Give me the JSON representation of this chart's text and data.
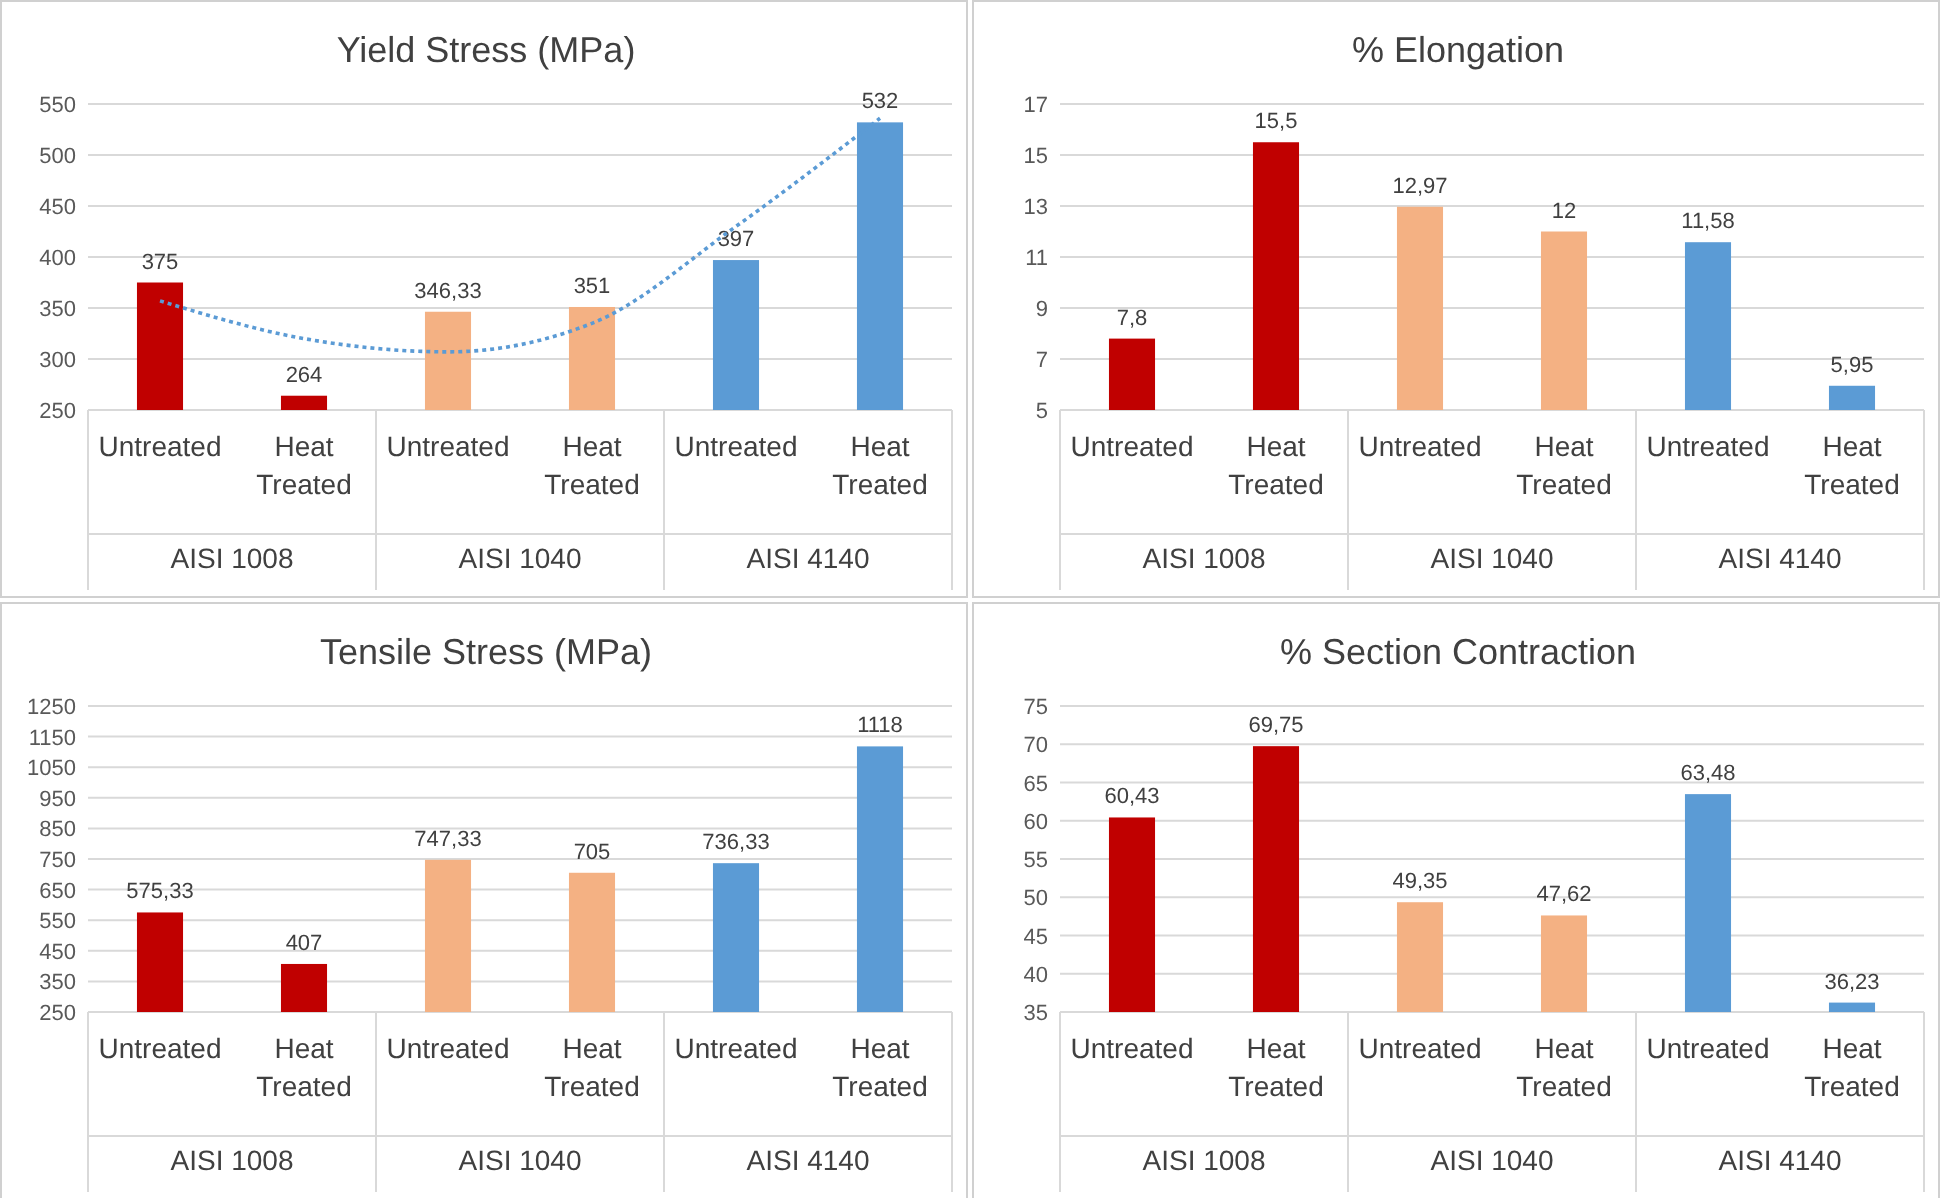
{
  "chart_data": [
    {
      "type": "bar",
      "title": "Yield Stress (MPa)",
      "categories": [
        "Untreated",
        "Heat Treated",
        "Untreated",
        "Heat Treated",
        "Untreated",
        "Heat Treated"
      ],
      "annotations": [
        "AISI 1008",
        "AISI 1040",
        "AISI 4140"
      ],
      "series": [
        {
          "type": "bar",
          "values": [
            375,
            264,
            346.33,
            351,
            397,
            532
          ],
          "value_labels": [
            "375",
            "264",
            "346,33",
            "351",
            "397",
            "532"
          ],
          "colors": [
            "#c00000",
            "#c00000",
            "#f4b183",
            "#f4b183",
            "#5b9bd5",
            "#5b9bd5"
          ]
        },
        {
          "type": "line",
          "values": [
            357,
            320,
            307,
            335,
            430,
            536
          ],
          "color": "#5b9bd5",
          "line_style": "dotted",
          "marker": "none"
        }
      ],
      "ylim": [
        250,
        550
      ],
      "yticks": [
        250,
        300,
        350,
        400,
        450,
        500,
        550
      ],
      "grid": "y"
    },
    {
      "type": "bar",
      "title": "% Elongation",
      "categories": [
        "Untreated",
        "Heat Treated",
        "Untreated",
        "Heat Treated",
        "Untreated",
        "Heat Treated"
      ],
      "annotations": [
        "AISI 1008",
        "AISI 1040",
        "AISI 4140"
      ],
      "series": [
        {
          "type": "bar",
          "values": [
            7.8,
            15.5,
            12.97,
            12,
            11.58,
            5.95
          ],
          "value_labels": [
            "7,8",
            "15,5",
            "12,97",
            "12",
            "11,58",
            "5,95"
          ],
          "colors": [
            "#c00000",
            "#c00000",
            "#f4b183",
            "#f4b183",
            "#5b9bd5",
            "#5b9bd5"
          ]
        }
      ],
      "ylim": [
        5,
        17
      ],
      "yticks": [
        5,
        7,
        9,
        11,
        13,
        15,
        17
      ],
      "grid": "y"
    },
    {
      "type": "bar",
      "title": "Tensile Stress (MPa)",
      "categories": [
        "Untreated",
        "Heat Treated",
        "Untreated",
        "Heat Treated",
        "Untreated",
        "Heat Treated"
      ],
      "annotations": [
        "AISI 1008",
        "AISI 1040",
        "AISI 4140"
      ],
      "series": [
        {
          "type": "bar",
          "values": [
            575.33,
            407,
            747.33,
            705,
            736.33,
            1118
          ],
          "value_labels": [
            "575,33",
            "407",
            "747,33",
            "705",
            "736,33",
            "1118"
          ],
          "colors": [
            "#c00000",
            "#c00000",
            "#f4b183",
            "#f4b183",
            "#5b9bd5",
            "#5b9bd5"
          ]
        }
      ],
      "ylim": [
        250,
        1250
      ],
      "yticks": [
        250,
        350,
        450,
        550,
        650,
        750,
        850,
        950,
        1050,
        1150,
        1250
      ],
      "grid": "y"
    },
    {
      "type": "bar",
      "title": "% Section Contraction",
      "categories": [
        "Untreated",
        "Heat Treated",
        "Untreated",
        "Heat Treated",
        "Untreated",
        "Heat Treated"
      ],
      "annotations": [
        "AISI 1008",
        "AISI 1040",
        "AISI 4140"
      ],
      "series": [
        {
          "type": "bar",
          "values": [
            60.43,
            69.75,
            49.35,
            47.62,
            63.48,
            36.23
          ],
          "value_labels": [
            "60,43",
            "69,75",
            "49,35",
            "47,62",
            "63,48",
            "36,23"
          ],
          "colors": [
            "#c00000",
            "#c00000",
            "#f4b183",
            "#f4b183",
            "#5b9bd5",
            "#5b9bd5"
          ]
        }
      ],
      "ylim": [
        35,
        75
      ],
      "yticks": [
        35,
        40,
        45,
        50,
        55,
        60,
        65,
        70,
        75
      ],
      "grid": "y"
    }
  ]
}
